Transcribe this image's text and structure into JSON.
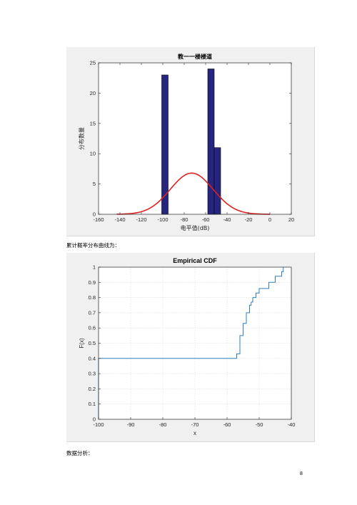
{
  "captions": {
    "cdf_intro": "累计概率分布曲线为：",
    "analysis_heading": "数据分析："
  },
  "page_number": "8",
  "chart_data": [
    {
      "type": "bar",
      "title": "教一一楼楼道",
      "xlabel": "电平值(dB)",
      "ylabel": "分布数量",
      "xlim": [
        -160,
        20
      ],
      "ylim": [
        0,
        25
      ],
      "xticks": [
        -160,
        -140,
        -120,
        -100,
        -80,
        -60,
        -40,
        -20,
        0,
        20
      ],
      "yticks": [
        0,
        5,
        10,
        15,
        20,
        25
      ],
      "bars": [
        {
          "x_start": -101,
          "x_end": -95,
          "value": 23
        },
        {
          "x_start": -58,
          "x_end": -52,
          "value": 24
        },
        {
          "x_start": -52,
          "x_end": -46,
          "value": 11
        }
      ],
      "bar_color": "#262680",
      "fit_curve": {
        "type": "normal",
        "mean": -73,
        "peak": 6.8,
        "x_range": [
          -143,
          0
        ],
        "color": "#e02020"
      },
      "grid": false
    },
    {
      "type": "line",
      "title": "Empirical CDF",
      "xlabel": "x",
      "ylabel": "F(x)",
      "xlim": [
        -100,
        -40
      ],
      "ylim": [
        0,
        1
      ],
      "xticks": [
        -100,
        -90,
        -80,
        -70,
        -60,
        -50,
        -40
      ],
      "yticks": [
        0,
        0.1,
        0.2,
        0.3,
        0.4,
        0.5,
        0.6,
        0.7,
        0.8,
        0.9,
        1
      ],
      "steps": [
        {
          "x": -100,
          "y": 0.1
        },
        {
          "x": -100,
          "y": 0.4
        },
        {
          "x": -57,
          "y": 0.43
        },
        {
          "x": -56,
          "y": 0.55
        },
        {
          "x": -55,
          "y": 0.63
        },
        {
          "x": -54,
          "y": 0.7
        },
        {
          "x": -53,
          "y": 0.75
        },
        {
          "x": -52.5,
          "y": 0.77
        },
        {
          "x": -52,
          "y": 0.8
        },
        {
          "x": -51,
          "y": 0.83
        },
        {
          "x": -50,
          "y": 0.86
        },
        {
          "x": -47,
          "y": 0.9
        },
        {
          "x": -45,
          "y": 0.94
        },
        {
          "x": -43,
          "y": 0.97
        },
        {
          "x": -42.5,
          "y": 1.0
        }
      ],
      "line_color": "#2f7fc0",
      "grid": true
    }
  ]
}
